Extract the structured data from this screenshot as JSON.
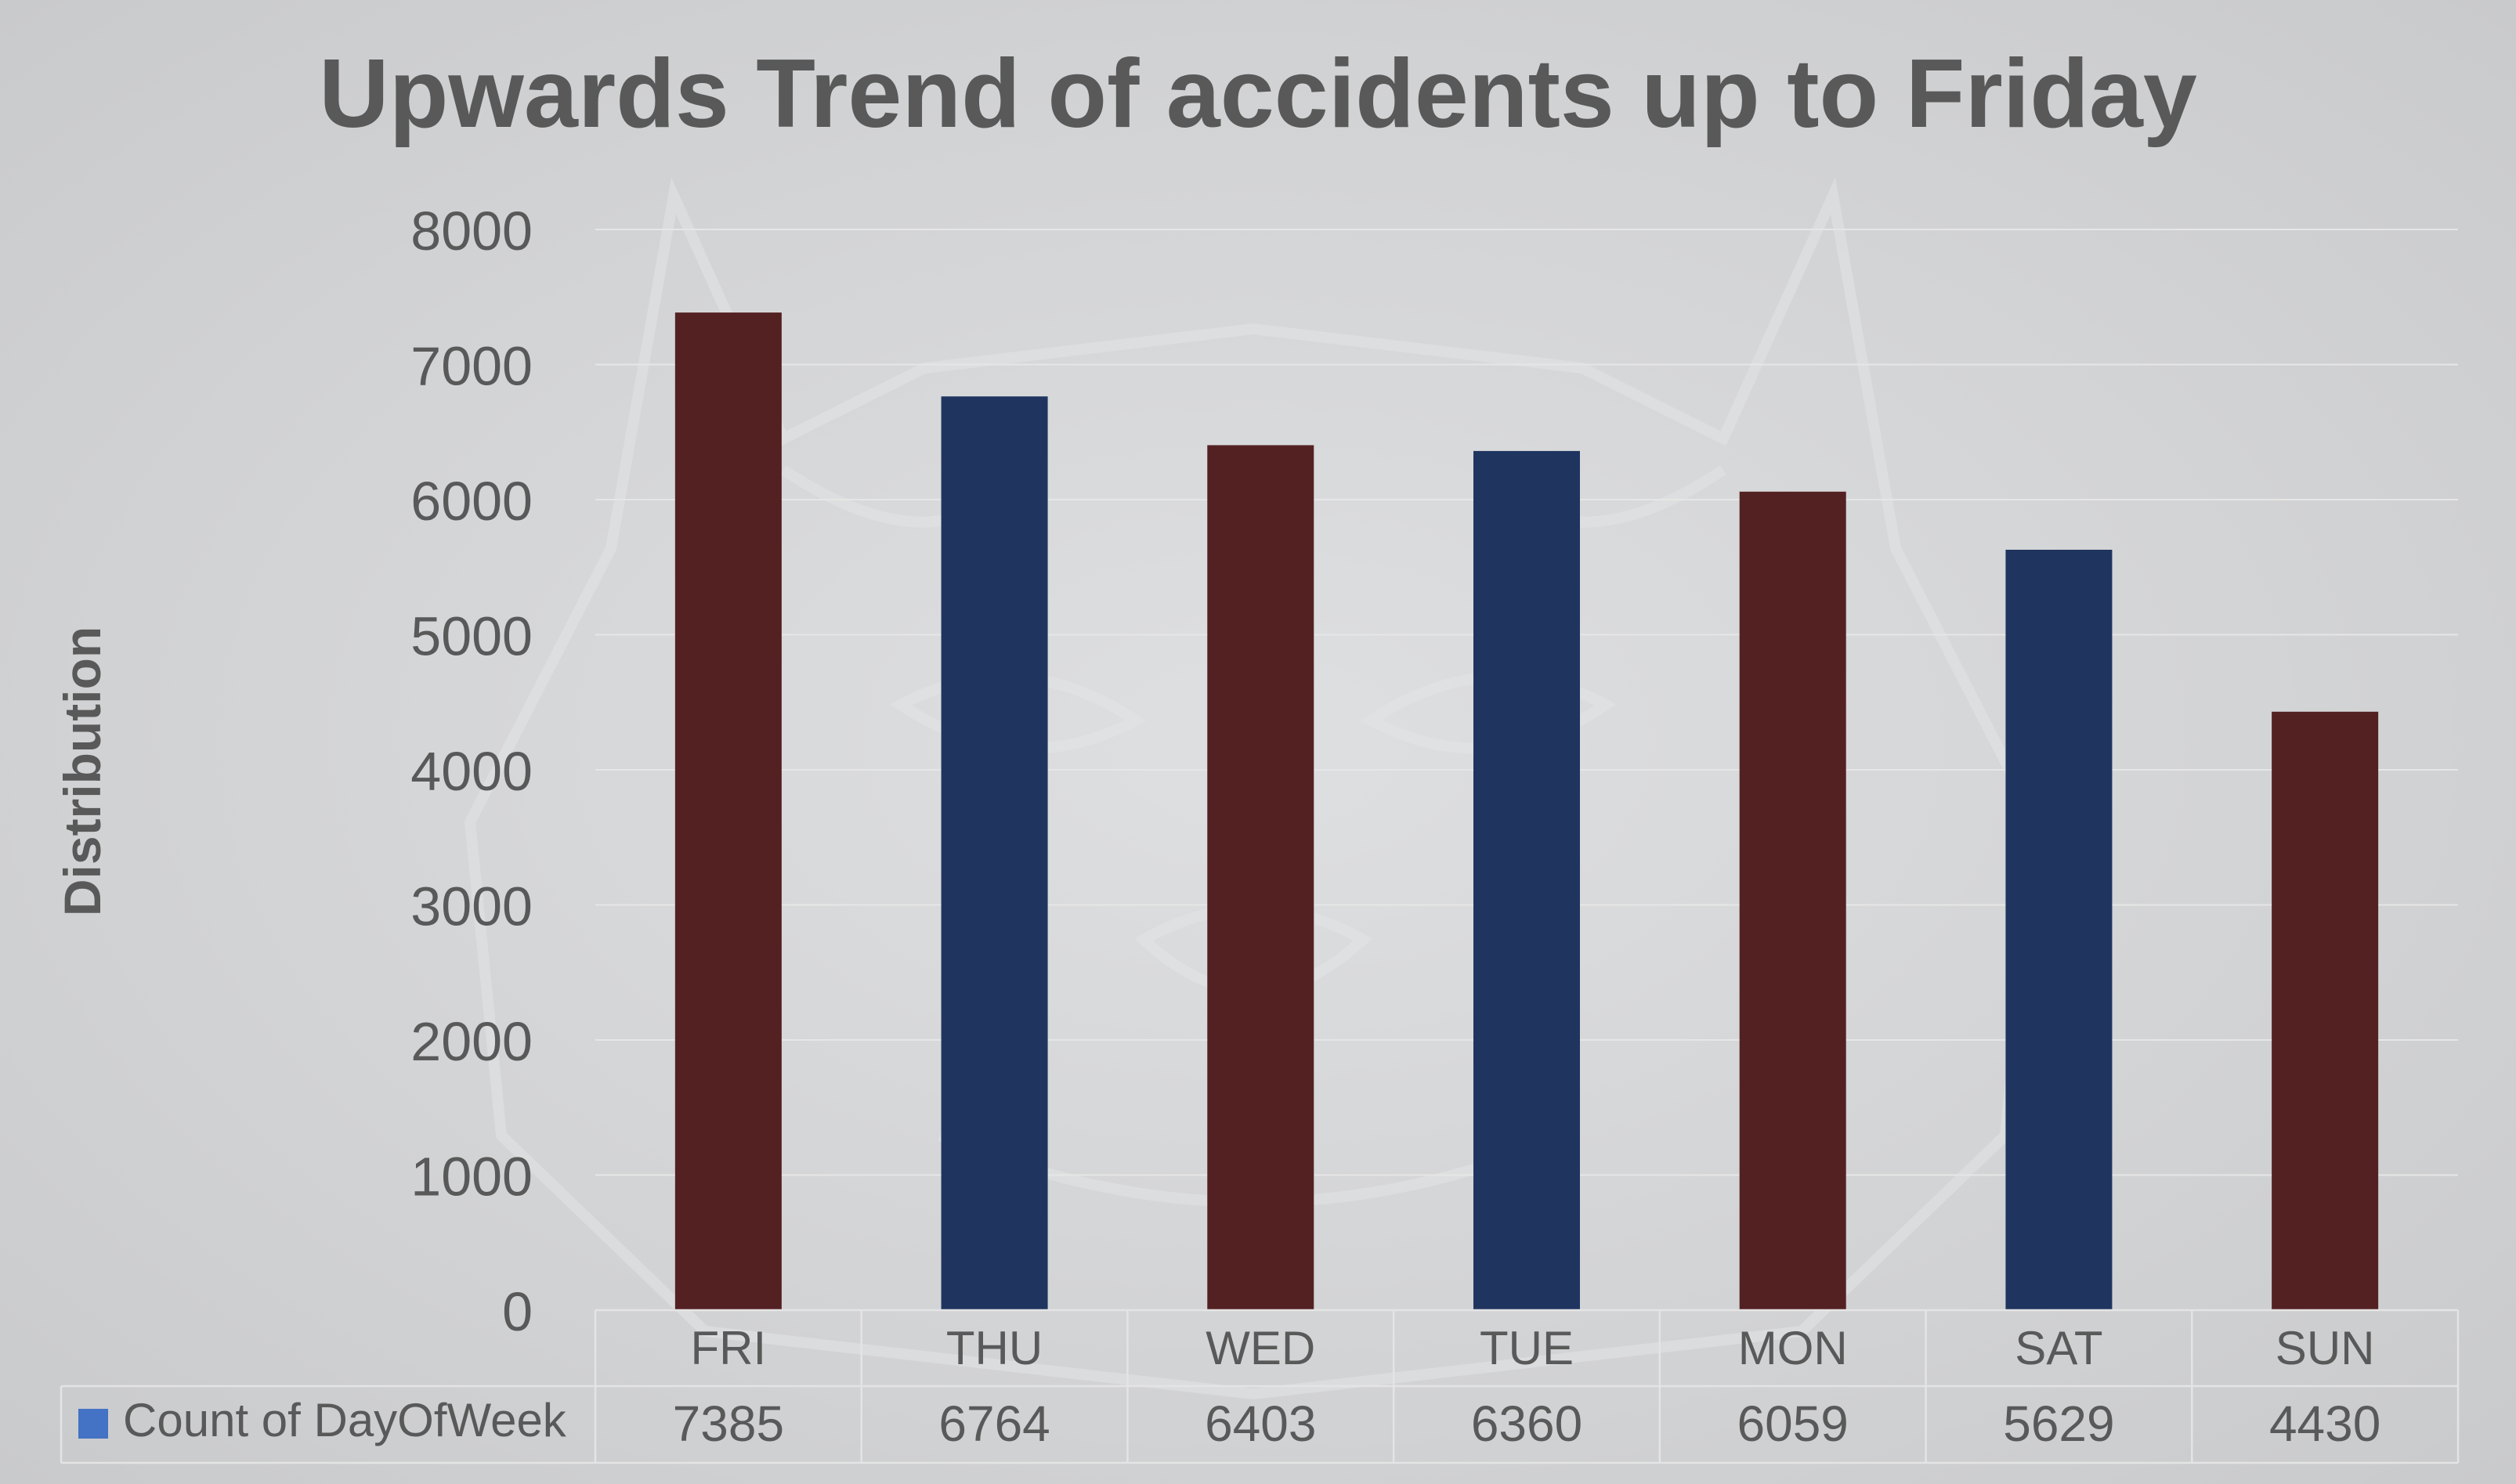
{
  "chart_data": {
    "type": "bar",
    "title": "Upwards Trend of accidents up to Friday",
    "xlabel": "",
    "ylabel": "Distribution",
    "categories": [
      "FRI",
      "THU",
      "WED",
      "TUE",
      "MON",
      "SAT",
      "SUN"
    ],
    "series": [
      {
        "name": "Count of DayOfWeek",
        "values": [
          7385,
          6764,
          6403,
          6360,
          6059,
          5629,
          4430
        ]
      }
    ],
    "ylim": [
      0,
      8000
    ],
    "yticks": [
      "0",
      "1000",
      "2000",
      "3000",
      "4000",
      "5000",
      "6000",
      "7000",
      "8000"
    ],
    "bar_colors": [
      "#542123",
      "#1f3560",
      "#542123",
      "#1f3560",
      "#542123",
      "#1f3560",
      "#542123"
    ],
    "legend_swatch_color": "#4472c4",
    "grid": true,
    "legend": "data-table"
  }
}
